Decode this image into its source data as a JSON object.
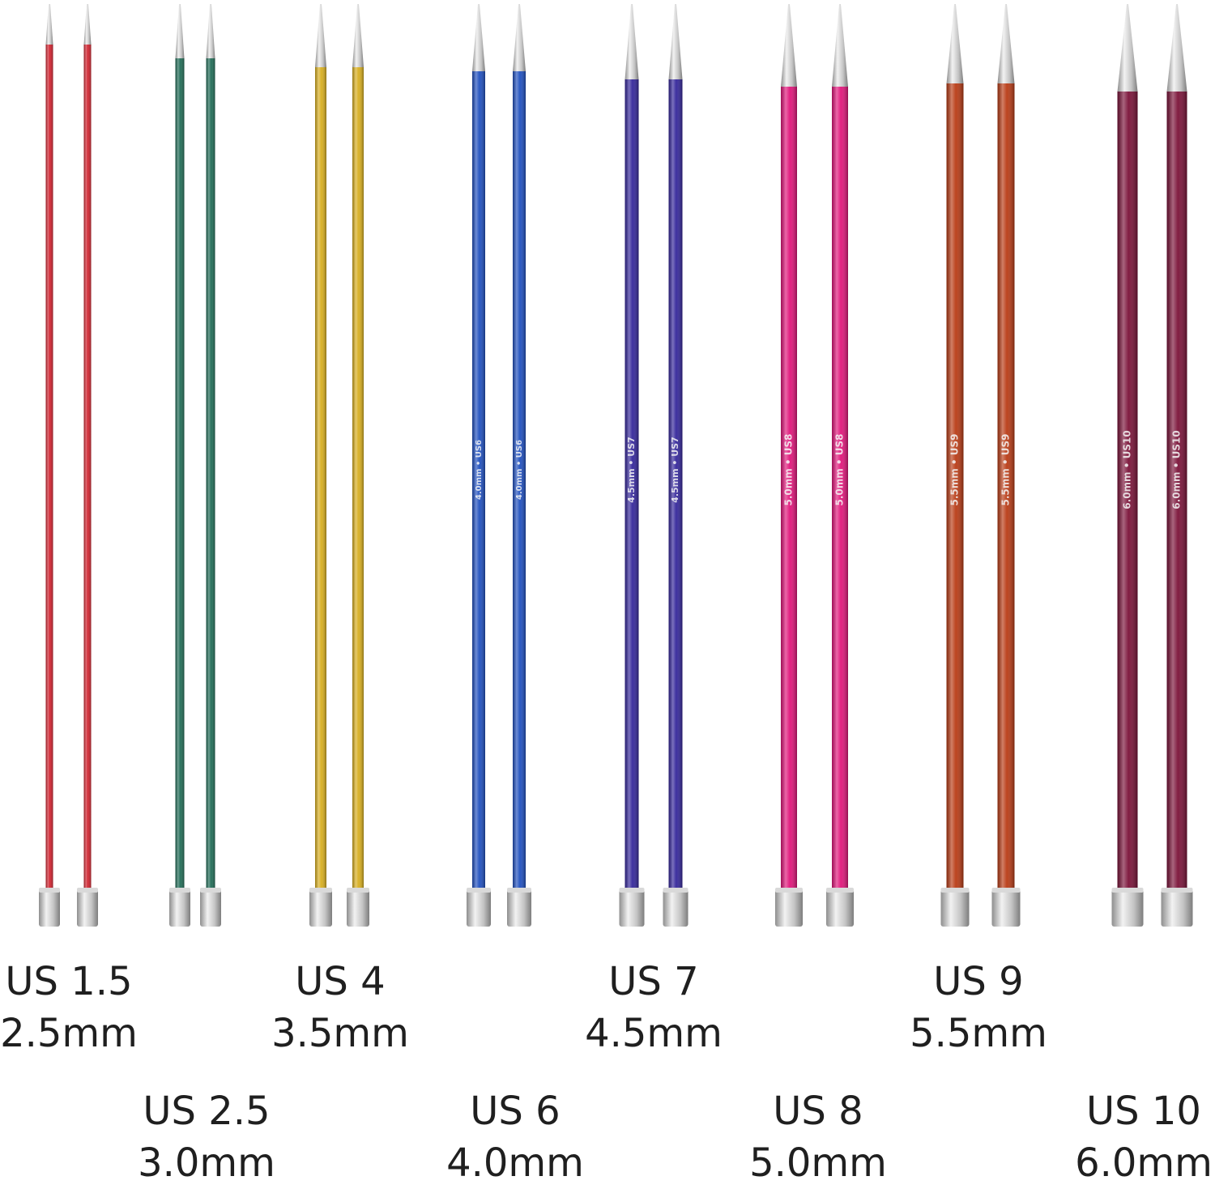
{
  "needle_sizes": [
    {
      "us_label": "US 1.5",
      "mm_label": "2.5mm",
      "shaft_color": "#d0222e",
      "shaft_marking": ""
    },
    {
      "us_label": "US 2.5",
      "mm_label": "3.0mm",
      "shaft_color": "#1f6b55",
      "shaft_marking": ""
    },
    {
      "us_label": "US 4",
      "mm_label": "3.5mm",
      "shaft_color": "#d8ae1e",
      "shaft_marking": ""
    },
    {
      "us_label": "US 6",
      "mm_label": "4.0mm",
      "shaft_color": "#1f4fbf",
      "shaft_marking": "4.0mm • US6"
    },
    {
      "us_label": "US 7",
      "mm_label": "4.5mm",
      "shaft_color": "#33259a",
      "shaft_marking": "4.5mm • US7"
    },
    {
      "us_label": "US 8",
      "mm_label": "5.0mm",
      "shaft_color": "#e0157a",
      "shaft_marking": "5.0mm • US8"
    },
    {
      "us_label": "US 9",
      "mm_label": "5.5mm",
      "shaft_color": "#b83a14",
      "shaft_marking": "5.5mm • US9"
    },
    {
      "us_label": "US 10",
      "mm_label": "6.0mm",
      "shaft_color": "#7a1238",
      "shaft_marking": "6.0mm • US10"
    }
  ]
}
